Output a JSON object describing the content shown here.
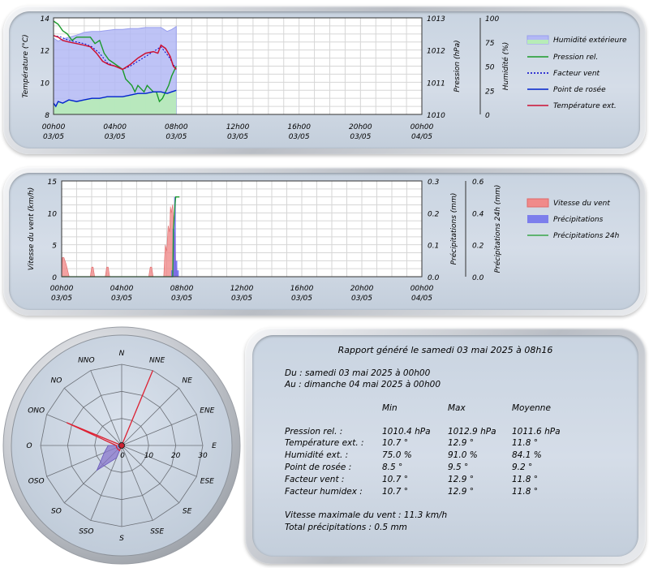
{
  "chart_data": [
    {
      "type": "line",
      "name": "temperature-pressure-humidity",
      "x_ticks": [
        {
          "time": "00h00",
          "date": "03/05"
        },
        {
          "time": "04h00",
          "date": "03/05"
        },
        {
          "time": "08h00",
          "date": "03/05"
        },
        {
          "time": "12h00",
          "date": "03/05"
        },
        {
          "time": "16h00",
          "date": "03/05"
        },
        {
          "time": "20h00",
          "date": "03/05"
        },
        {
          "time": "00h00",
          "date": "04/05"
        }
      ],
      "xlim_hours": [
        0,
        24
      ],
      "ylabel_left": "Température (°C)",
      "ylim_left": [
        8,
        14
      ],
      "yticks_left": [
        "8",
        "10",
        "12",
        "14"
      ],
      "ylabel_pressure": "Pression (hPa)",
      "ylim_pressure": [
        1010,
        1013
      ],
      "yticks_pressure": [
        "1010",
        "1011",
        "1012",
        "1013"
      ],
      "ylabel_humidity": "Humidité (%)",
      "ylim_humidity": [
        0,
        100
      ],
      "yticks_humidity": [
        "0",
        "25",
        "50",
        "75",
        "100"
      ],
      "legend": [
        "Humidité extérieure",
        "Pression rel.",
        "Facteur vent",
        "Point de rosée",
        "Température ext."
      ],
      "colors": {
        "humidity": "#b3b8f5",
        "pressure": "#1a9a2a",
        "wind_factor": "#0000cc",
        "dew_point": "#0022cc",
        "temperature": "#cc1133",
        "dew_fill": "#b7ecb7"
      },
      "series": [
        {
          "name": "Humidité extérieure",
          "axis": "humidity",
          "x": [
            0,
            0.3,
            0.6,
            1,
            1.5,
            2,
            2.5,
            3,
            3.5,
            4,
            4.5,
            5,
            5.5,
            6,
            6.5,
            7,
            7.4,
            7.7,
            8.0
          ],
          "y": [
            79,
            76,
            78,
            80,
            82,
            85,
            86,
            86,
            87,
            88,
            88,
            89,
            89,
            90,
            90,
            90,
            86,
            88,
            91
          ]
        },
        {
          "name": "Pression rel.",
          "axis": "pressure",
          "x": [
            0,
            0.3,
            0.6,
            0.9,
            1.2,
            1.5,
            1.8,
            2.1,
            2.4,
            2.7,
            3.0,
            3.3,
            3.6,
            3.9,
            4.2,
            4.5,
            4.7,
            4.9,
            5.1,
            5.3,
            5.5,
            5.7,
            5.9,
            6.1,
            6.3,
            6.5,
            6.7,
            6.9,
            7.1,
            7.3,
            7.5,
            7.7,
            7.9,
            8.0
          ],
          "y": [
            1012.9,
            1012.8,
            1012.6,
            1012.5,
            1012.3,
            1012.4,
            1012.4,
            1012.4,
            1012.4,
            1012.2,
            1012.3,
            1011.9,
            1011.7,
            1011.6,
            1011.5,
            1011.4,
            1011.1,
            1011.0,
            1010.9,
            1010.7,
            1010.9,
            1010.8,
            1010.7,
            1010.9,
            1010.8,
            1010.7,
            1010.7,
            1010.4,
            1010.5,
            1010.7,
            1010.9,
            1011.2,
            1011.4,
            1011.5
          ]
        },
        {
          "name": "Facteur vent",
          "axis": "left",
          "x": [
            0,
            0.5,
            1,
            1.5,
            2,
            2.5,
            3,
            3.5,
            4,
            4.5,
            5,
            5.5,
            6,
            6.5,
            7,
            7.5,
            8.0
          ],
          "y": [
            12.9,
            12.8,
            12.6,
            12.5,
            12.4,
            12.2,
            11.8,
            11.2,
            11.0,
            10.8,
            11.0,
            11.3,
            11.6,
            11.9,
            12.2,
            11.6,
            10.8
          ]
        },
        {
          "name": "Point de rosée",
          "axis": "left",
          "x": [
            0,
            0.15,
            0.3,
            0.6,
            1,
            1.5,
            2,
            2.5,
            3,
            3.5,
            4,
            4.5,
            5,
            5.5,
            6,
            6.5,
            7,
            7.4,
            7.7,
            8.0
          ],
          "y": [
            8.7,
            8.5,
            8.8,
            8.7,
            8.9,
            8.8,
            8.9,
            9.0,
            9.0,
            9.1,
            9.1,
            9.1,
            9.2,
            9.3,
            9.3,
            9.4,
            9.4,
            9.3,
            9.4,
            9.5
          ]
        },
        {
          "name": "Température ext.",
          "axis": "left",
          "x": [
            0,
            0.3,
            0.6,
            1,
            1.5,
            2,
            2.4,
            2.8,
            3.2,
            3.6,
            4,
            4.5,
            5,
            5.5,
            6,
            6.5,
            6.8,
            7,
            7.3,
            7.6,
            7.8,
            8.0
          ],
          "y": [
            12.9,
            12.8,
            12.6,
            12.5,
            12.4,
            12.3,
            12.2,
            11.8,
            11.3,
            11.1,
            11.0,
            10.8,
            11.1,
            11.5,
            11.8,
            11.9,
            11.8,
            12.3,
            12.1,
            11.6,
            11.0,
            10.8
          ]
        }
      ]
    },
    {
      "type": "line",
      "name": "wind-rain",
      "x_ticks": [
        {
          "time": "00h00",
          "date": "03/05"
        },
        {
          "time": "04h00",
          "date": "03/05"
        },
        {
          "time": "08h00",
          "date": "03/05"
        },
        {
          "time": "12h00",
          "date": "03/05"
        },
        {
          "time": "16h00",
          "date": "03/05"
        },
        {
          "time": "20h00",
          "date": "03/05"
        },
        {
          "time": "00h00",
          "date": "04/05"
        }
      ],
      "xlim_hours": [
        0,
        24
      ],
      "ylabel_left": "Vitesse du vent (km/h)",
      "ylim_left": [
        0,
        15
      ],
      "yticks_left": [
        "0",
        "5",
        "10",
        "15"
      ],
      "ylabel_rain": "Précipitations (mm)",
      "ylim_rain": [
        0,
        0.3
      ],
      "yticks_rain": [
        "0.0",
        "0.1",
        "0.2",
        "0.3"
      ],
      "ylabel_rain24": "Précipitations 24h (mm)",
      "ylim_rain24": [
        0,
        0.6
      ],
      "yticks_rain24": [
        "0.0",
        "0.2",
        "0.4",
        "0.6"
      ],
      "legend": [
        "Vitesse du vent",
        "Précipitations",
        "Précipitations 24h"
      ],
      "colors": {
        "wind": "#f08a8a",
        "rain": "#6666ee",
        "rain24": "#1a9a2a"
      },
      "series": [
        {
          "name": "Vitesse du vent",
          "axis": "left",
          "x": [
            0,
            0.05,
            0.15,
            0.3,
            0.4,
            0.5,
            1.9,
            2.0,
            2.1,
            2.2,
            2.9,
            3.0,
            3.1,
            3.2,
            5.8,
            5.9,
            6.0,
            6.1,
            6.8,
            6.9,
            7.0,
            7.1,
            7.2,
            7.25,
            7.3,
            7.4,
            7.45,
            7.5,
            7.55,
            7.6,
            7.7,
            7.8
          ],
          "y": [
            0,
            3,
            3,
            2,
            1,
            0,
            0,
            1.5,
            1.5,
            0,
            0,
            1.5,
            1.5,
            0,
            0,
            1.5,
            1.5,
            0,
            0,
            5,
            4,
            8,
            7,
            11,
            10,
            11.3,
            9,
            3,
            7,
            2,
            0,
            0
          ]
        },
        {
          "name": "Précipitations",
          "axis": "rain",
          "x": [
            7.35,
            7.45,
            7.55,
            7.65,
            7.75
          ],
          "y": [
            0.02,
            0.15,
            0.25,
            0.05,
            0.02
          ]
        },
        {
          "name": "Précipitations 24h",
          "axis": "rain24",
          "x": [
            0,
            7.4,
            7.45,
            7.55,
            7.6,
            7.7,
            7.75,
            7.85
          ],
          "y": [
            0,
            0,
            0.3,
            0.45,
            0.5,
            0.5,
            0.5,
            0.5
          ]
        }
      ]
    },
    {
      "type": "radar",
      "name": "wind-rose",
      "directions": [
        "N",
        "NNE",
        "NE",
        "ENE",
        "E",
        "ESE",
        "SE",
        "SSE",
        "S",
        "SSO",
        "SO",
        "OSO",
        "O",
        "ONO",
        "NO",
        "NNO"
      ],
      "rings": [
        "0",
        "10",
        "20",
        "30"
      ],
      "rmax": 30,
      "colors": {
        "fill": "#8877cc",
        "line": "#dd2233"
      },
      "frequencies": [
        0,
        0,
        0,
        0,
        0,
        0,
        0,
        0,
        0,
        5,
        13,
        7,
        5,
        0,
        0,
        0
      ],
      "max_speed": [
        0,
        30,
        0,
        0,
        0,
        0,
        0,
        0,
        0,
        2,
        2,
        2,
        2,
        22,
        0,
        0
      ]
    }
  ],
  "report": {
    "title": "Rapport généré le samedi 03 mai 2025 à 08h16",
    "from": "Du : samedi 03 mai 2025 à 00h00",
    "to": "Au : dimanche 04 mai 2025 à 00h00",
    "headers": [
      "Min",
      "Max",
      "Moyenne"
    ],
    "rows": [
      {
        "label": "Pression rel. :",
        "min": "1010.4 hPa",
        "max": "1012.9 hPa",
        "avg": "1011.6 hPa"
      },
      {
        "label": "Température ext. :",
        "min": "10.7 °",
        "max": "12.9 °",
        "avg": "11.8 °"
      },
      {
        "label": "Humidité ext. :",
        "min": "75.0 %",
        "max": "91.0 %",
        "avg": "84.1 %"
      },
      {
        "label": "Point de rosée :",
        "min": "8.5 °",
        "max": "9.5 °",
        "avg": "9.2 °"
      },
      {
        "label": "Facteur vent :",
        "min": "10.7 °",
        "max": "12.9 °",
        "avg": "11.8 °"
      },
      {
        "label": "Facteur humidex :",
        "min": "10.7 °",
        "max": "12.9 °",
        "avg": "11.8 °"
      }
    ],
    "max_wind": "Vitesse maximale du vent : 11.3 km/h",
    "total_rain": "Total précipitations : 0.5 mm"
  }
}
